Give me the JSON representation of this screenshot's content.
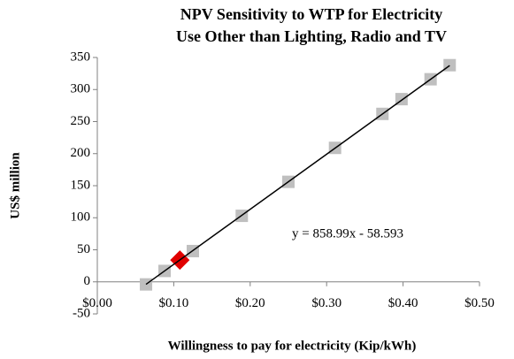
{
  "chart_data": {
    "type": "scatter",
    "title": [
      "NPV Sensitivity to WTP for Electricity",
      "Use Other than Lighting, Radio and TV"
    ],
    "x_label": "Willingness to pay for electricity (Kip/kWh)",
    "y_label": "US$ million",
    "xlim": [
      0,
      0.5
    ],
    "ylim": [
      -50,
      350
    ],
    "xticks": [
      {
        "value": 0,
        "label": "$0.00"
      },
      {
        "value": 0.1,
        "label": "$0.10"
      },
      {
        "value": 0.2,
        "label": "$0.20"
      },
      {
        "value": 0.3,
        "label": "$0.30"
      },
      {
        "value": 0.4,
        "label": "$0.40"
      },
      {
        "value": 0.5,
        "label": "$0.50"
      }
    ],
    "yticks": [
      -50,
      0,
      50,
      100,
      150,
      200,
      250,
      300,
      350
    ],
    "series": [
      {
        "color": "#bfbfbf",
        "marker": "square",
        "x": [
          0.0637,
          0.088,
          0.125,
          0.189,
          0.25,
          0.311,
          0.373,
          0.398,
          0.436,
          0.461
        ],
        "values": [
          -4,
          17,
          48,
          103,
          156,
          209,
          262,
          285,
          316,
          338
        ]
      },
      {
        "color": "#e00000",
        "marker": "diamond",
        "x": [
          0.108
        ],
        "values": [
          34
        ]
      }
    ],
    "trendline": {
      "slope": 858.99,
      "intercept": -58.593,
      "color": "#000000",
      "label": "y = 858.99x - 58.593"
    }
  }
}
